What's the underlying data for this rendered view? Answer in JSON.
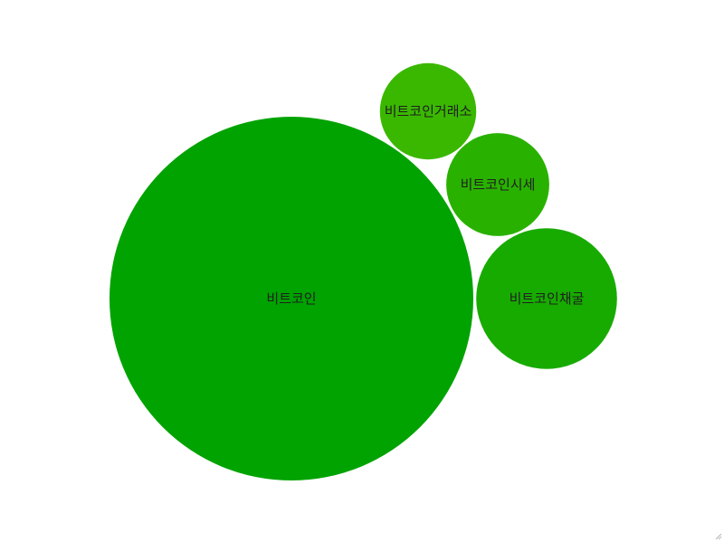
{
  "chart_data": {
    "type": "bubble",
    "title": "",
    "items": [
      {
        "label": "비트코인",
        "value": 100,
        "color": "#00a300"
      },
      {
        "label": "비트코인거래소",
        "value": 7,
        "color": "#3ab800"
      },
      {
        "label": "비트코인시세",
        "value": 8,
        "color": "#29b100"
      },
      {
        "label": "비트코인채굴",
        "value": 15,
        "color": "#17ab00"
      }
    ]
  }
}
